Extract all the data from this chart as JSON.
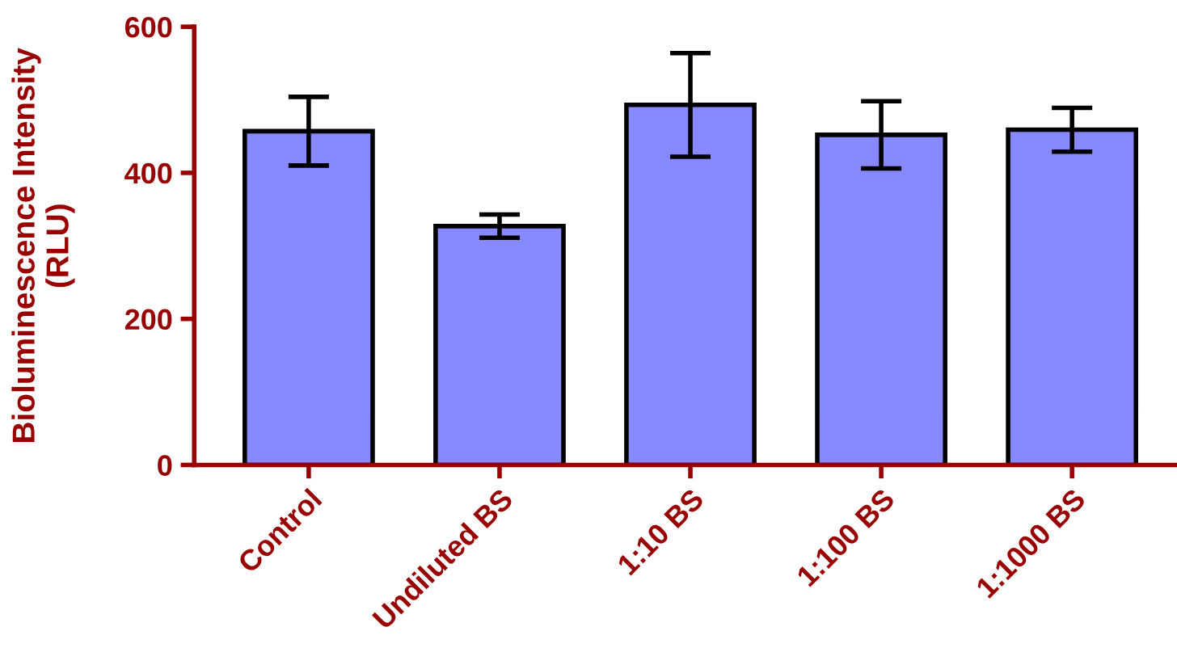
{
  "chart_data": {
    "type": "bar",
    "ylabel": "Bioluminescence Intensity\n(RLU)",
    "categories": [
      "Control",
      "Undiluted BS",
      "1:10 BS",
      "1:100 BS",
      "1:1000 BS"
    ],
    "values": [
      457,
      327,
      493,
      452,
      459
    ],
    "errors": [
      47,
      16,
      71,
      46,
      30
    ],
    "color": "#8888ff",
    "ylim": [
      0,
      600
    ],
    "yticks": [
      0,
      200,
      400,
      600
    ],
    "grid": false,
    "legend": false
  }
}
